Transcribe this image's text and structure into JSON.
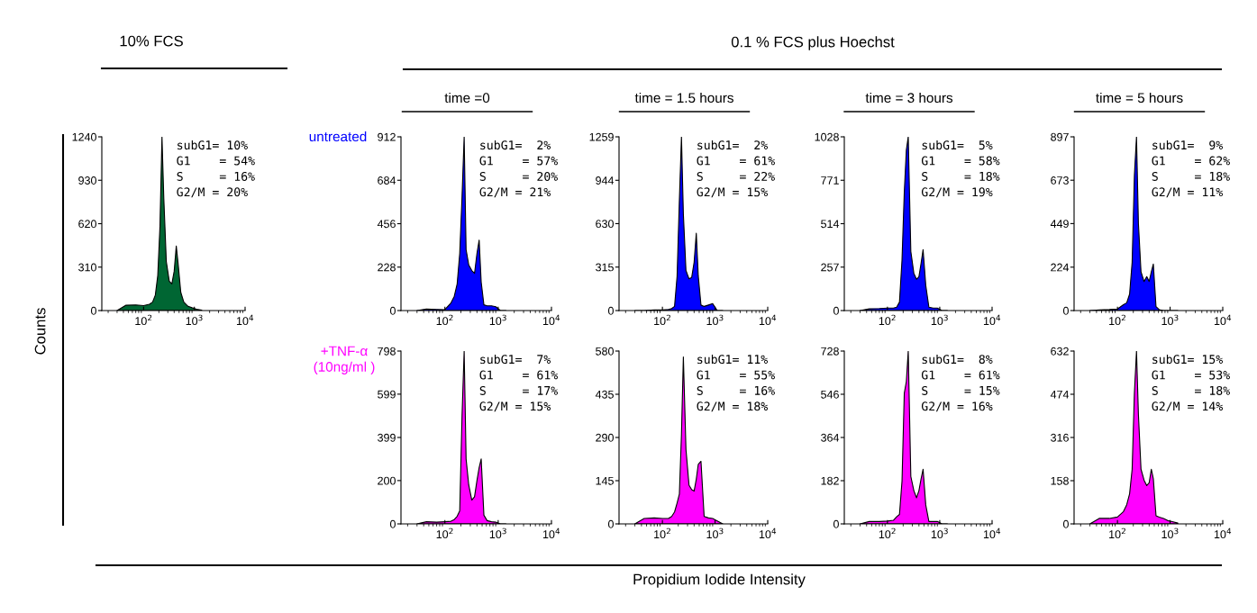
{
  "chart_data": [
    {
      "type": "area",
      "title": "10% FCS",
      "ylabel": "Counts",
      "log": "x",
      "grid": false,
      "xlim": [
        15,
        10000
      ],
      "ylim": [
        0,
        1240
      ],
      "yticks": [
        0,
        310,
        620,
        930,
        1240
      ],
      "xticks": [
        {
          "value": 100,
          "label": "10$^{2}$"
        },
        {
          "value": 1000,
          "label": "10$^{3}$"
        },
        {
          "value": 10000,
          "label": "10$^{4}$"
        }
      ],
      "x": [
        30,
        45,
        70,
        100,
        130,
        150,
        170,
        190,
        210,
        230,
        250,
        280,
        320,
        360,
        400,
        440,
        480,
        540,
        620,
        750,
        900,
        1100,
        1400
      ],
      "series": [
        {
          "color": "#006633",
          "values": [
            0,
            38,
            40,
            35,
            45,
            60,
            110,
            250,
            600,
            1240,
            800,
            350,
            210,
            190,
            280,
            460,
            330,
            130,
            60,
            30,
            20,
            10,
            3
          ]
        }
      ],
      "annotations": [
        "subG1= 10%\nG1    = 54%\nS     = 16%\nG2/M = 20%",
        "0.1 % FCS plus Hoechst",
        "Propidium Iodide Intensity"
      ]
    },
    {
      "type": "area",
      "title": "time =0",
      "log": "x",
      "grid": false,
      "xlim": [
        15,
        10000
      ],
      "ylim": [
        0,
        912
      ],
      "yticks": [
        0,
        228,
        456,
        684,
        912
      ],
      "xticks": [
        {
          "value": 100,
          "label": "10$^{2}$"
        },
        {
          "value": 1000,
          "label": "10$^{3}$"
        },
        {
          "value": 10000,
          "label": "10$^{4}$"
        }
      ],
      "x": [
        30,
        45,
        70,
        100,
        130,
        150,
        170,
        190,
        210,
        230,
        250,
        280,
        320,
        360,
        400,
        440,
        480,
        540,
        620,
        750,
        900,
        1100,
        1400
      ],
      "series": [
        {
          "color": "#0000ff",
          "values": [
            0,
            8,
            6,
            5,
            40,
            75,
            140,
            300,
            600,
            912,
            320,
            240,
            210,
            195,
            300,
            370,
            150,
            30,
            25,
            25,
            20,
            0,
            0
          ]
        }
      ],
      "annotations": [
        "subG1=  2%\nG1    = 57%\nS     = 20%\nG2/M = 21%",
        "untreated"
      ]
    },
    {
      "type": "area",
      "title": "time = 1.5 hours",
      "log": "x",
      "grid": false,
      "xlim": [
        15,
        10000
      ],
      "ylim": [
        0,
        1259
      ],
      "yticks": [
        0,
        315,
        630,
        944,
        1259
      ],
      "xticks": [
        {
          "value": 100,
          "label": "10$^{2}$"
        },
        {
          "value": 1000,
          "label": "10$^{3}$"
        },
        {
          "value": 10000,
          "label": "10$^{4}$"
        }
      ],
      "x": [
        30,
        45,
        70,
        100,
        130,
        150,
        170,
        190,
        210,
        230,
        250,
        280,
        320,
        360,
        400,
        440,
        480,
        540,
        620,
        750,
        900,
        1100,
        1400
      ],
      "series": [
        {
          "color": "#0000ff",
          "values": [
            0,
            0,
            5,
            5,
            8,
            15,
            30,
            250,
            800,
            1259,
            700,
            290,
            230,
            240,
            350,
            560,
            250,
            40,
            30,
            40,
            50,
            0,
            0
          ]
        }
      ],
      "annotations": [
        "subG1=  2%\nG1    = 61%\nS     = 22%\nG2/M = 15%"
      ]
    },
    {
      "type": "area",
      "title": "time = 3 hours",
      "log": "x",
      "grid": false,
      "xlim": [
        15,
        10000
      ],
      "ylim": [
        0,
        1028
      ],
      "yticks": [
        0,
        257,
        514,
        771,
        1028
      ],
      "xticks": [
        {
          "value": 100,
          "label": "10$^{2}$"
        },
        {
          "value": 1000,
          "label": "10$^{3}$"
        },
        {
          "value": 10000,
          "label": "10$^{4}$"
        }
      ],
      "x": [
        30,
        45,
        70,
        100,
        130,
        150,
        170,
        190,
        210,
        230,
        250,
        280,
        320,
        360,
        400,
        440,
        480,
        540,
        620,
        750,
        900,
        1100,
        1400
      ],
      "series": [
        {
          "color": "#0000ff",
          "values": [
            0,
            10,
            12,
            15,
            15,
            20,
            50,
            300,
            700,
            950,
            1028,
            350,
            220,
            185,
            200,
            280,
            360,
            150,
            20,
            15,
            15,
            0,
            0
          ]
        }
      ],
      "annotations": [
        "subG1=  5%\nG1    = 58%\nS     = 18%\nG2/M = 19%"
      ]
    },
    {
      "type": "area",
      "title": "time = 5 hours",
      "log": "x",
      "grid": false,
      "xlim": [
        15,
        10000
      ],
      "ylim": [
        0,
        897
      ],
      "yticks": [
        0,
        224,
        449,
        673,
        897
      ],
      "xticks": [
        {
          "value": 100,
          "label": "10$^{2}$"
        },
        {
          "value": 1000,
          "label": "10$^{3}$"
        },
        {
          "value": 10000,
          "label": "10$^{4}$"
        }
      ],
      "x": [
        30,
        45,
        70,
        100,
        130,
        150,
        170,
        190,
        210,
        230,
        250,
        280,
        320,
        360,
        400,
        440,
        480,
        540,
        620,
        750,
        900,
        1100,
        1400
      ],
      "series": [
        {
          "color": "#0000ff",
          "values": [
            0,
            3,
            5,
            8,
            30,
            40,
            85,
            250,
            700,
            897,
            450,
            200,
            150,
            175,
            150,
            200,
            240,
            20,
            5,
            0,
            0,
            0,
            0
          ]
        }
      ],
      "annotations": [
        "subG1=  9%\nG1    = 62%\nS     = 18%\nG2/M = 11%"
      ]
    },
    {
      "type": "area",
      "log": "x",
      "grid": false,
      "xlim": [
        15,
        10000
      ],
      "ylim": [
        0,
        798
      ],
      "yticks": [
        0,
        200,
        399,
        599,
        798
      ],
      "xticks": [
        {
          "value": 100,
          "label": "10$^{2}$"
        },
        {
          "value": 1000,
          "label": "10$^{3}$"
        },
        {
          "value": 10000,
          "label": "10$^{4}$"
        }
      ],
      "x": [
        30,
        45,
        70,
        100,
        130,
        150,
        170,
        190,
        210,
        230,
        250,
        280,
        320,
        360,
        400,
        440,
        480,
        540,
        620,
        750,
        900,
        1100,
        1400
      ],
      "series": [
        {
          "color": "#ff00ff",
          "values": [
            0,
            10,
            8,
            10,
            12,
            20,
            35,
            60,
            500,
            798,
            300,
            180,
            110,
            125,
            200,
            260,
            300,
            40,
            15,
            10,
            8,
            0,
            0
          ]
        }
      ],
      "annotations": [
        "subG1=  7%\nG1    = 61%\nS     = 17%\nG2/M = 15%",
        "+TNF-α\n(10ng/ml )"
      ]
    },
    {
      "type": "area",
      "log": "x",
      "grid": false,
      "xlim": [
        15,
        10000
      ],
      "ylim": [
        0,
        580
      ],
      "yticks": [
        0,
        145,
        290,
        435,
        580
      ],
      "xticks": [
        {
          "value": 100,
          "label": "10$^{2}$"
        },
        {
          "value": 1000,
          "label": "10$^{3}$"
        },
        {
          "value": 10000,
          "label": "10$^{4}$"
        }
      ],
      "x": [
        30,
        45,
        70,
        100,
        130,
        150,
        170,
        190,
        210,
        230,
        250,
        280,
        320,
        360,
        400,
        440,
        480,
        540,
        620,
        750,
        900,
        1100,
        1400
      ],
      "series": [
        {
          "color": "#ff00ff",
          "values": [
            0,
            18,
            20,
            18,
            18,
            25,
            40,
            70,
            100,
            300,
            560,
            250,
            130,
            115,
            110,
            150,
            200,
            210,
            25,
            20,
            18,
            10,
            0
          ]
        }
      ],
      "annotations": [
        "subG1= 11%\nG1    = 55%\nS     = 16%\nG2/M = 18%"
      ]
    },
    {
      "type": "area",
      "log": "x",
      "grid": false,
      "xlim": [
        15,
        10000
      ],
      "ylim": [
        0,
        728
      ],
      "yticks": [
        0,
        182,
        364,
        546,
        728
      ],
      "xticks": [
        {
          "value": 100,
          "label": "10$^{2}$"
        },
        {
          "value": 1000,
          "label": "10$^{3}$"
        },
        {
          "value": 10000,
          "label": "10$^{4}$"
        }
      ],
      "x": [
        30,
        45,
        70,
        100,
        130,
        150,
        170,
        190,
        210,
        230,
        250,
        280,
        320,
        360,
        400,
        440,
        480,
        540,
        620,
        750,
        900,
        1100,
        1400
      ],
      "series": [
        {
          "color": "#ff00ff",
          "values": [
            0,
            10,
            10,
            12,
            15,
            30,
            40,
            180,
            550,
            600,
            728,
            200,
            140,
            110,
            140,
            190,
            230,
            80,
            10,
            10,
            10,
            0,
            0
          ]
        }
      ],
      "annotations": [
        "subG1=  8%\nG1    = 61%\nS     = 15%\nG2/M = 16%"
      ]
    },
    {
      "type": "area",
      "log": "x",
      "grid": false,
      "xlim": [
        15,
        10000
      ],
      "ylim": [
        0,
        632
      ],
      "yticks": [
        0,
        158,
        316,
        474,
        632
      ],
      "xticks": [
        {
          "value": 100,
          "label": "10$^{2}$"
        },
        {
          "value": 1000,
          "label": "10$^{3}$"
        },
        {
          "value": 10000,
          "label": "10$^{4}$"
        }
      ],
      "x": [
        30,
        45,
        70,
        100,
        130,
        150,
        170,
        190,
        210,
        230,
        250,
        280,
        320,
        360,
        400,
        440,
        480,
        540,
        620,
        750,
        900,
        1100,
        1400
      ],
      "series": [
        {
          "color": "#ff00ff",
          "values": [
            0,
            20,
            20,
            25,
            45,
            70,
            110,
            200,
            480,
            632,
            400,
            200,
            160,
            140,
            150,
            200,
            165,
            30,
            25,
            20,
            12,
            8,
            3
          ]
        }
      ],
      "annotations": [
        "subG1= 15%\nG1    = 53%\nS     = 18%\nG2/M = 14%"
      ]
    }
  ]
}
